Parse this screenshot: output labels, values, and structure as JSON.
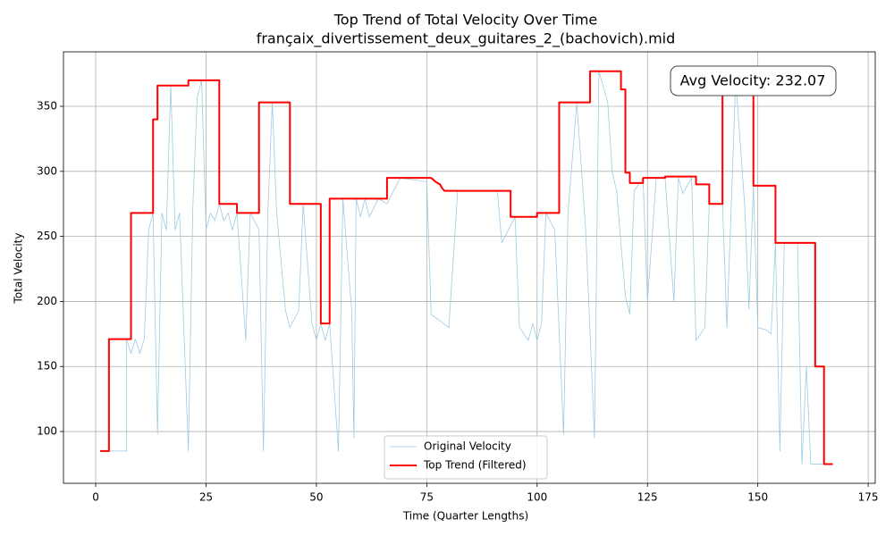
{
  "chart_data": {
    "type": "line",
    "title": "Top Trend of Total Velocity Over Time",
    "subtitle": "françaix_divertissement_deux_guitares_2_(bachovich).mid",
    "x_label": "Time (Quarter Lengths)",
    "y_label": "Total Velocity",
    "annotation": "Avg Velocity: 232.07",
    "xlim": [
      -7.3,
      176.6
    ],
    "ylim": [
      60.2,
      391.9
    ],
    "xticks": [
      0,
      25,
      50,
      75,
      100,
      125,
      150,
      175
    ],
    "yticks": [
      100,
      150,
      200,
      250,
      300,
      350
    ],
    "grid": true,
    "legend": "lower center",
    "series": [
      {
        "name": "Original Velocity",
        "color": "#9ecae1",
        "x": [
          1,
          7,
          7,
          8,
          9,
          10,
          11,
          12,
          13,
          14,
          15,
          16,
          17,
          18,
          19,
          21,
          22,
          23,
          24,
          25,
          26,
          27,
          28,
          29,
          30,
          31,
          32,
          34,
          35,
          37,
          38,
          39,
          40,
          41,
          43,
          44,
          46,
          47,
          49,
          50,
          51,
          52,
          53,
          55,
          56,
          58,
          58.5,
          59,
          60,
          61,
          62,
          64,
          66,
          69,
          75,
          76,
          78,
          80,
          82,
          91,
          92,
          95,
          96,
          98,
          99,
          100,
          101,
          102,
          104,
          106,
          107,
          109,
          111,
          113,
          114,
          116,
          117,
          118,
          120,
          121,
          122,
          124,
          125,
          127,
          129,
          131,
          132,
          133,
          135,
          136,
          138,
          139,
          142,
          143,
          144,
          145,
          147,
          148,
          149,
          150,
          152,
          153,
          154,
          155,
          156,
          159,
          160,
          161,
          162,
          166
        ],
        "values": [
          85,
          85,
          171,
          160,
          171,
          160,
          171,
          255,
          268,
          98,
          268,
          255,
          366,
          255,
          268,
          85,
          272,
          357,
          370,
          255,
          268,
          262,
          275,
          262,
          268,
          255,
          268,
          170,
          268,
          255,
          85,
          268,
          353,
          268,
          193,
          180,
          193,
          275,
          183,
          170,
          183,
          170,
          183,
          85,
          279,
          193,
          95,
          279,
          265,
          279,
          265,
          279,
          275,
          295,
          292,
          190,
          185,
          180,
          285,
          285,
          245,
          265,
          180,
          170,
          183,
          170,
          183,
          268,
          255,
          98,
          268,
          353,
          255,
          95,
          377,
          353,
          300,
          285,
          204,
          190,
          285,
          295,
          200,
          295,
          295,
          200,
          295,
          283,
          295,
          170,
          180,
          275,
          275,
          180,
          275,
          370,
          275,
          194,
          289,
          180,
          178,
          175,
          245,
          85,
          245,
          245,
          75,
          150,
          75,
          75
        ]
      },
      {
        "name": "Top Trend (Filtered)",
        "color": "#ff0000",
        "x": [
          1,
          3,
          3,
          8,
          8,
          13,
          13,
          14,
          14,
          21,
          21,
          28,
          28,
          32,
          32,
          37,
          37,
          44,
          44,
          51,
          51,
          53,
          53,
          66,
          66,
          76,
          77,
          78,
          78.5,
          79,
          94,
          94,
          100,
          100,
          105,
          105,
          112,
          112,
          119,
          119,
          120,
          120,
          121,
          121,
          124,
          124,
          129,
          129,
          136,
          136,
          139,
          139,
          142,
          142,
          149,
          149,
          154,
          154,
          163,
          163,
          165,
          165,
          167
        ],
        "values": [
          85,
          85,
          171,
          171,
          268,
          268,
          340,
          340,
          366,
          366,
          370,
          370,
          275,
          275,
          268,
          268,
          353,
          353,
          275,
          275,
          183,
          183,
          279,
          279,
          295,
          295,
          292,
          290,
          287,
          285,
          285,
          265,
          265,
          268,
          268,
          353,
          353,
          377,
          377,
          363,
          363,
          299,
          299,
          291,
          291,
          295,
          295,
          296,
          296,
          290,
          290,
          275,
          275,
          370,
          370,
          289,
          289,
          245,
          245,
          150,
          150,
          75,
          75
        ]
      }
    ]
  }
}
